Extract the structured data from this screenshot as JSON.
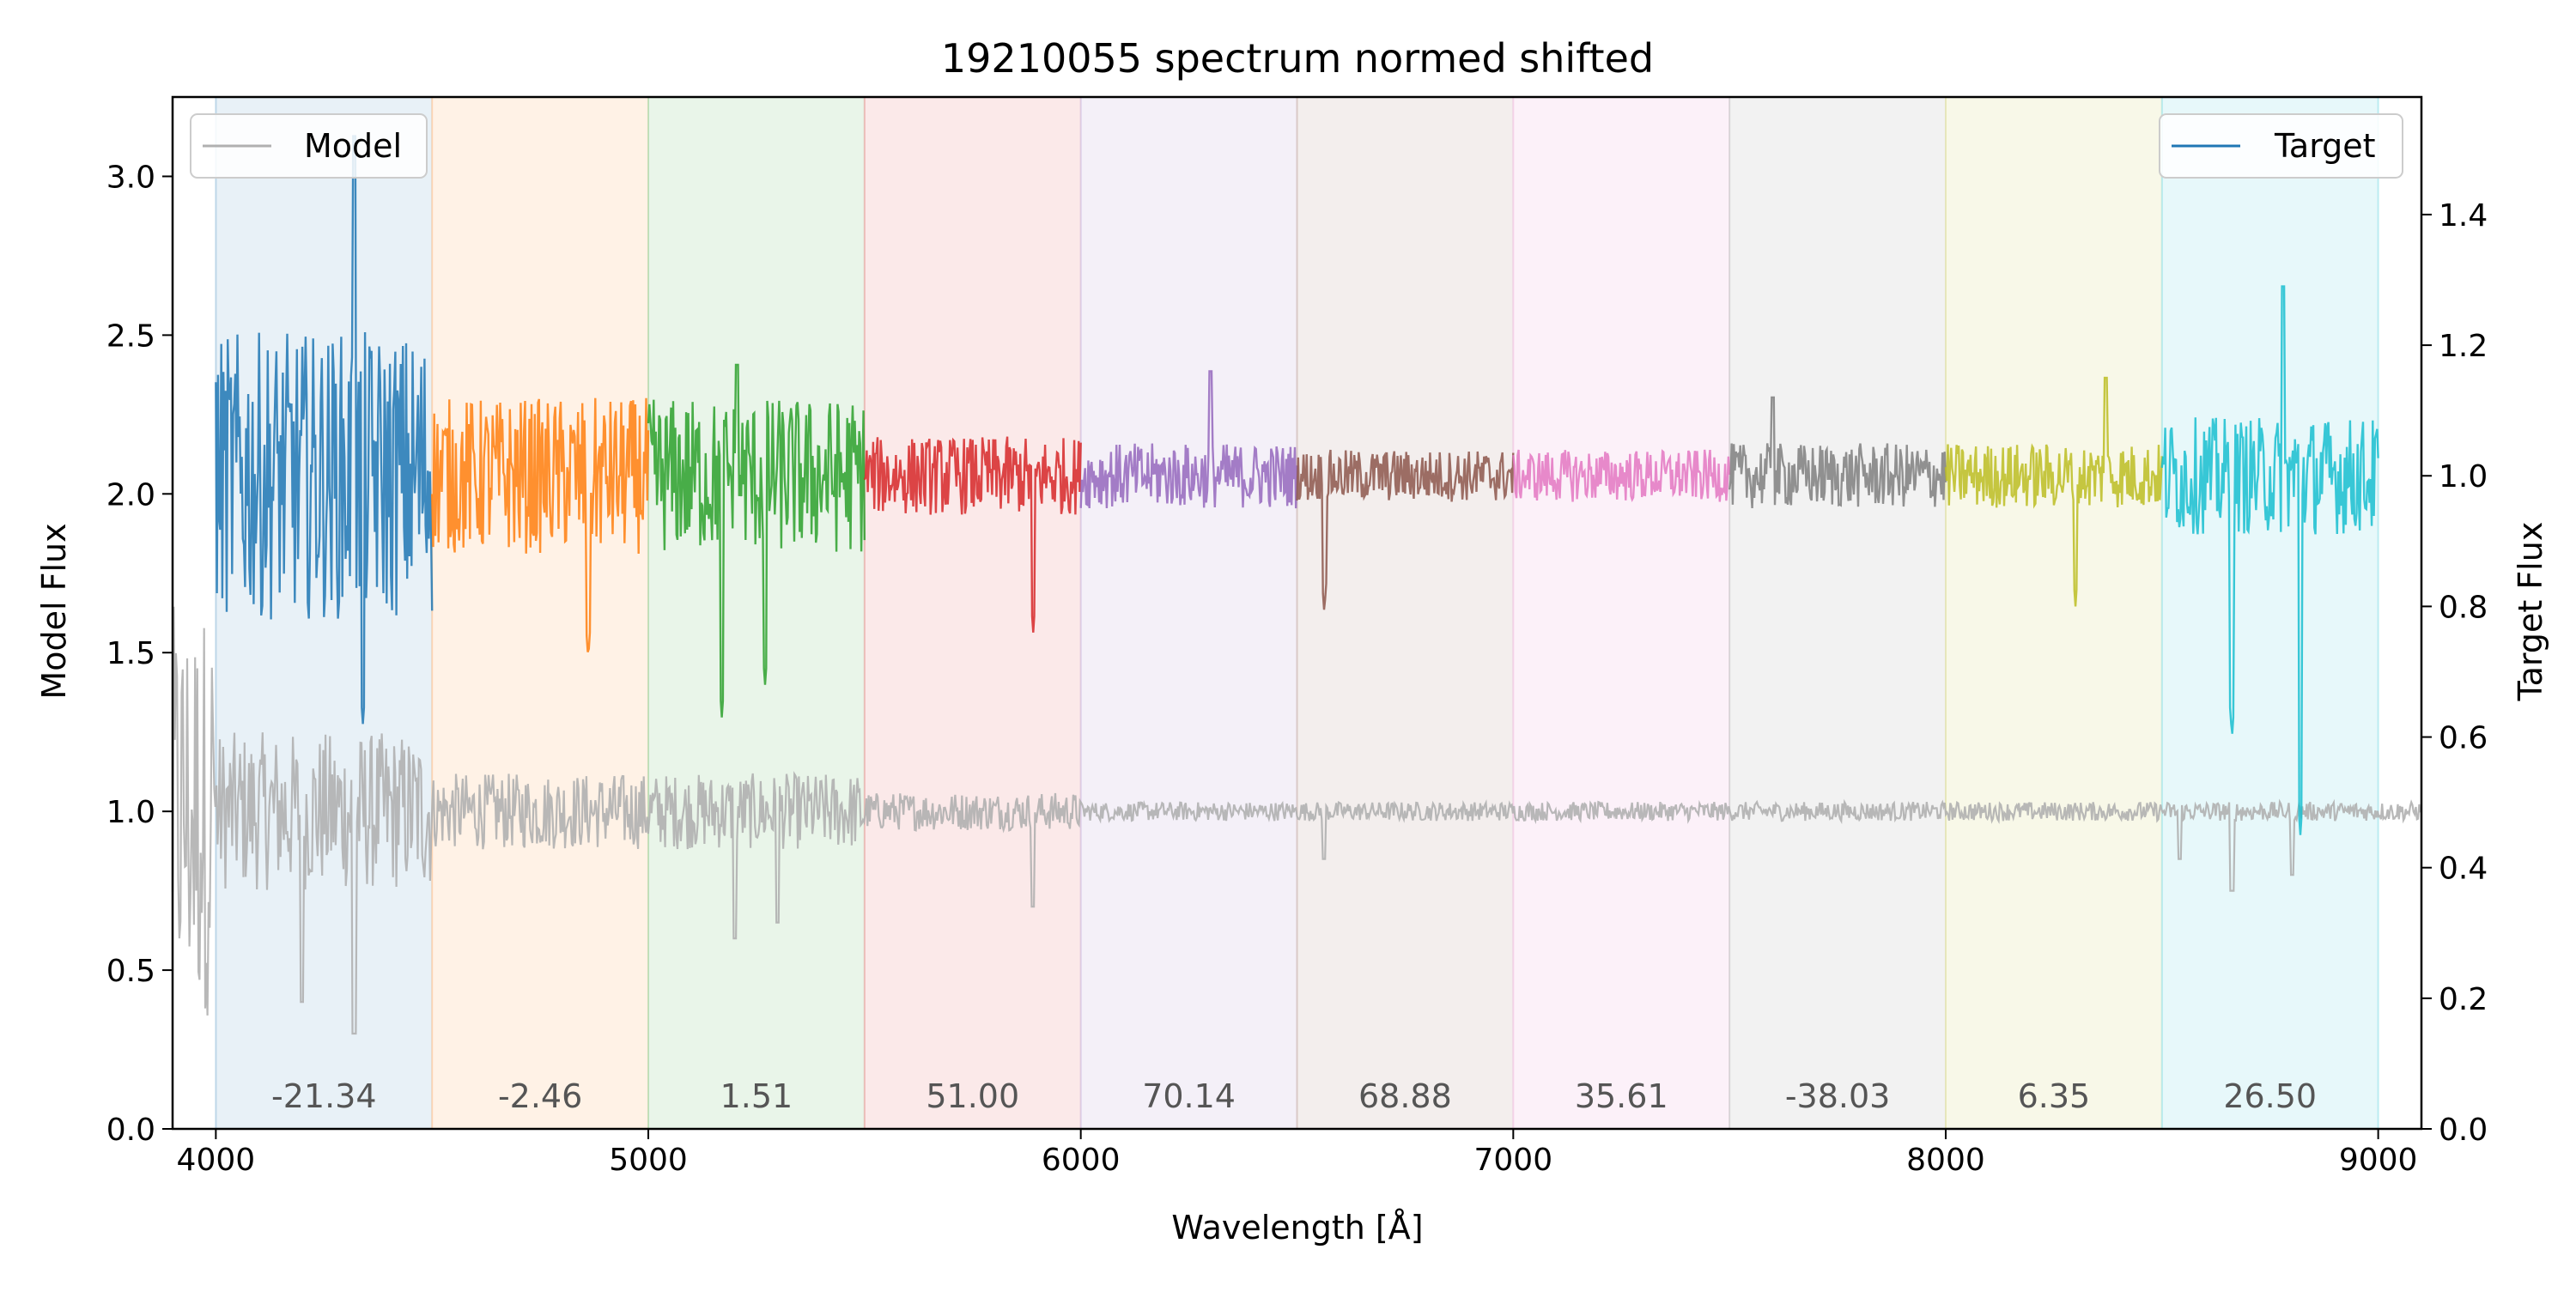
{
  "chart_data": {
    "type": "line",
    "title": "19210055 spectrum normed shifted",
    "xlabel": "Wavelength [Å]",
    "ylabel_left": "Model Flux",
    "ylabel_right": "Target Flux",
    "xlim": [
      3900,
      9100
    ],
    "ylim_left": [
      0.0,
      3.25
    ],
    "ylim_right": [
      0.0,
      1.58
    ],
    "x_ticks": [
      4000,
      5000,
      6000,
      7000,
      8000,
      9000
    ],
    "y_ticks_left": [
      "0.0",
      "0.5",
      "1.0",
      "1.5",
      "2.0",
      "2.5",
      "3.0"
    ],
    "y_ticks_right": [
      "0.0",
      "0.2",
      "0.4",
      "0.6",
      "0.8",
      "1.0",
      "1.2",
      "1.4"
    ],
    "legend_left": {
      "label": "Model",
      "position": "upper left",
      "color": "#b0b0b0"
    },
    "legend_right": {
      "label": "Target",
      "position": "upper right",
      "color": "#1f77b4"
    },
    "model_series": {
      "name": "Model",
      "color": "#b0b0b0",
      "axis": "left",
      "x": [
        3900,
        3920,
        3940,
        3960,
        3980,
        4050,
        4200,
        4320,
        4500,
        4700,
        4900,
        5100,
        5200,
        5300,
        5500,
        5700,
        5890,
        6000,
        6300,
        6500,
        6563,
        6700,
        7000,
        7500,
        8000,
        8498,
        8542,
        8662,
        8800,
        9000,
        9100
      ],
      "y": [
        1.8,
        0.15,
        1.6,
        0.2,
        1.2,
        1.1,
        0.4,
        0.3,
        1.0,
        1.0,
        0.95,
        0.95,
        0.6,
        0.65,
        1.0,
        1.0,
        0.7,
        1.0,
        1.0,
        1.0,
        0.85,
        1.0,
        1.0,
        1.0,
        1.0,
        1.0,
        0.85,
        0.75,
        0.8,
        1.0,
        0.95
      ]
    },
    "segments": [
      {
        "x_start": 4000,
        "x_end": 4500,
        "label": "-21.34",
        "color": "#1f77b4",
        "level": 1.0,
        "scatter": 0.22,
        "dips": [
          [
            4340,
            0.62
          ]
        ],
        "spikes": [
          [
            4320,
            1.52
          ]
        ]
      },
      {
        "x_start": 4500,
        "x_end": 5000,
        "label": "-2.46",
        "color": "#ff7f0e",
        "level": 1.0,
        "scatter": 0.12,
        "dips": [
          [
            4861,
            0.72
          ]
        ],
        "spikes": []
      },
      {
        "x_start": 5000,
        "x_end": 5500,
        "label": "1.51",
        "color": "#2ca02c",
        "level": 1.0,
        "scatter": 0.12,
        "dips": [
          [
            5170,
            0.63
          ],
          [
            5270,
            0.68
          ]
        ],
        "spikes": [
          [
            5205,
            1.17
          ]
        ]
      },
      {
        "x_start": 5500,
        "x_end": 6000,
        "label": "51.00",
        "color": "#d62728",
        "level": 1.0,
        "scatter": 0.06,
        "dips": [
          [
            5890,
            0.76
          ]
        ],
        "spikes": []
      },
      {
        "x_start": 6000,
        "x_end": 6500,
        "label": "70.14",
        "color": "#9467bd",
        "level": 1.0,
        "scatter": 0.05,
        "dips": [
          [
            6300,
            0.81
          ]
        ],
        "spikes": [
          [
            6300,
            1.16
          ]
        ]
      },
      {
        "x_start": 6500,
        "x_end": 7000,
        "label": "68.88",
        "color": "#8c564b",
        "level": 1.0,
        "scatter": 0.04,
        "dips": [
          [
            6563,
            0.79
          ]
        ],
        "spikes": []
      },
      {
        "x_start": 7000,
        "x_end": 7500,
        "label": "35.61",
        "color": "#e377c2",
        "level": 1.0,
        "scatter": 0.04,
        "dips": [],
        "spikes": []
      },
      {
        "x_start": 7500,
        "x_end": 8000,
        "label": "-38.03",
        "color": "#7f7f7f",
        "level": 1.0,
        "scatter": 0.05,
        "dips": [],
        "spikes": [
          [
            7600,
            1.12
          ]
        ]
      },
      {
        "x_start": 8000,
        "x_end": 8500,
        "label": "6.35",
        "color": "#bcbd22",
        "level": 1.0,
        "scatter": 0.05,
        "dips": [
          [
            8300,
            0.8
          ]
        ],
        "spikes": [
          [
            8370,
            1.15
          ]
        ]
      },
      {
        "x_start": 8500,
        "x_end": 9000,
        "label": "26.50",
        "color": "#17becf",
        "level": 1.0,
        "scatter": 0.09,
        "dips": [
          [
            8662,
            0.6
          ],
          [
            8820,
            0.45
          ]
        ],
        "spikes": [
          [
            8780,
            1.29
          ]
        ]
      }
    ]
  }
}
